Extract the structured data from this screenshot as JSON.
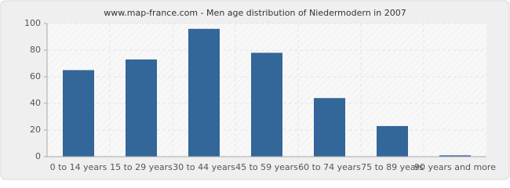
{
  "chart_data": {
    "type": "bar",
    "title": "www.map-france.com - Men age distribution of Niedermodern in 2007",
    "categories": [
      "0 to 14 years",
      "15 to 29 years",
      "30 to 44 years",
      "45 to 59 years",
      "60 to 74 years",
      "75 to 89 years",
      "90 years and more"
    ],
    "values": [
      65,
      73,
      96,
      78,
      44,
      23,
      1
    ],
    "color": "#336699",
    "ylim": [
      0,
      100
    ],
    "yticks": [
      0,
      20,
      40,
      60,
      80,
      100
    ],
    "grid": true
  }
}
